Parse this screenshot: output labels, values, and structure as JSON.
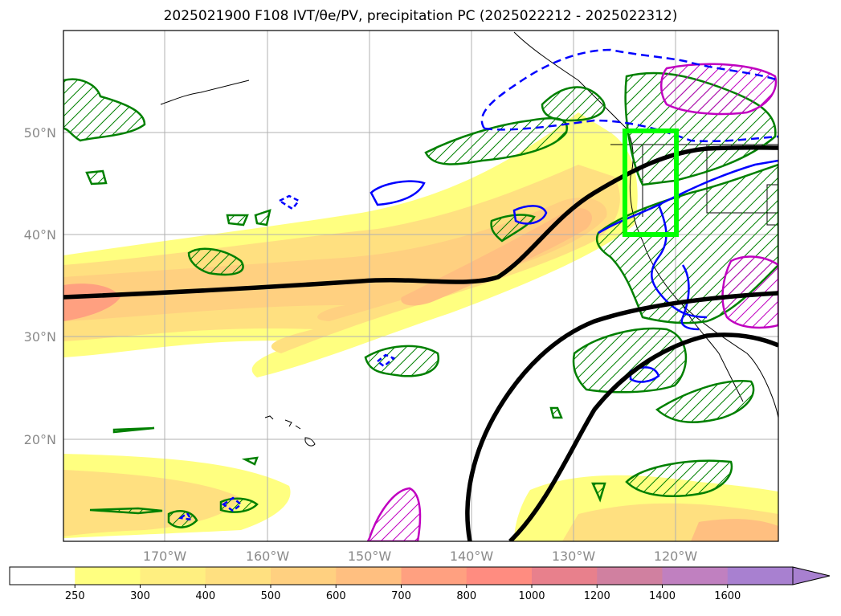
{
  "title": "2025021900 F108 IVT/θe/PV, precipitation PC (2025022212 - 2025022312)",
  "map": {
    "lon_labels": [
      "170°W",
      "160°W",
      "150°W",
      "140°W",
      "130°W",
      "120°W"
    ],
    "lat_labels": [
      "50°N",
      "40°N",
      "30°N",
      "20°N"
    ],
    "highlight_box_color": "#00ff00",
    "ivt_contour_color": "#000000",
    "pv_positive_color": "#0000ff",
    "theta_e_color": "#008000",
    "precip_pc_color": "#c000c0"
  },
  "colorbar": {
    "ticks": [
      "250",
      "300",
      "400",
      "500",
      "600",
      "700",
      "800",
      "1000",
      "1200",
      "1400",
      "1600"
    ],
    "colors": [
      "#ffffff",
      "#ffff80",
      "#ffef80",
      "#ffe080",
      "#ffd080",
      "#ffbf80",
      "#ffa080",
      "#ff8c80",
      "#e8808c",
      "#d080a0",
      "#c080c0",
      "#a880d0"
    ]
  }
}
